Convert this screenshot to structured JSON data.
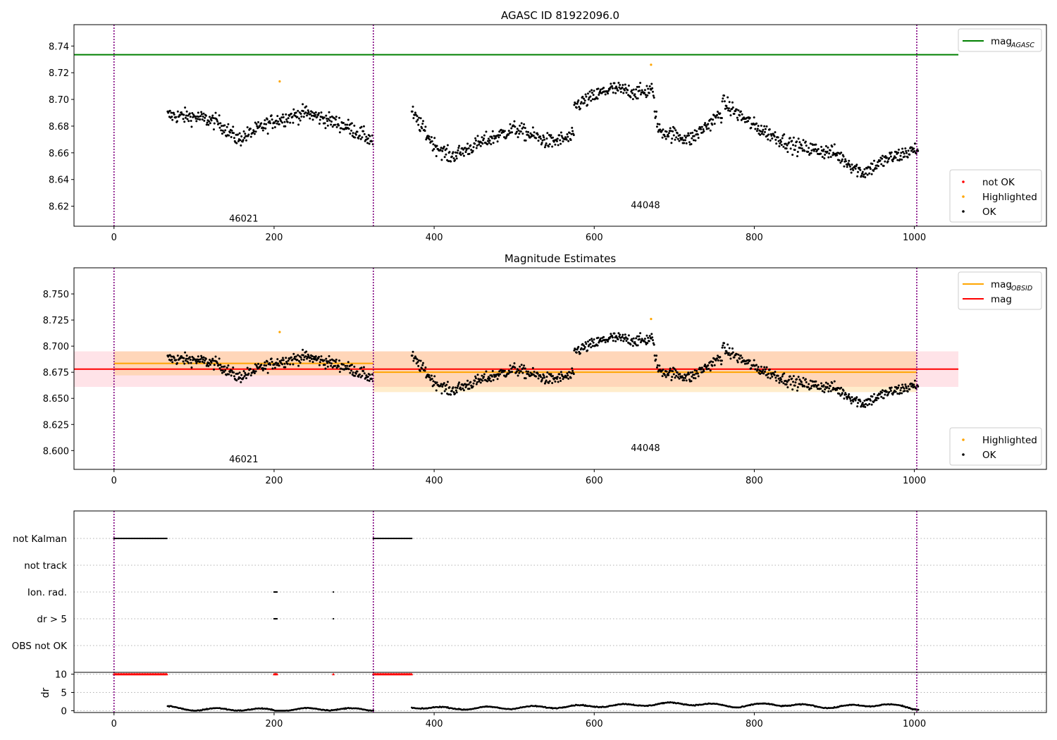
{
  "chart_data": [
    {
      "type": "scatter",
      "title": "AGASC ID 81922096.0",
      "xlabel": "",
      "ylabel": "",
      "xlim": [
        -50,
        1165
      ],
      "ylim": [
        8.605,
        8.756
      ],
      "xticks": [
        "0",
        "200",
        "400",
        "600",
        "800",
        "1000"
      ],
      "yticks": [
        "8.62",
        "8.64",
        "8.66",
        "8.68",
        "8.70",
        "8.72",
        "8.74"
      ],
      "grid": false,
      "obs_boundaries": [
        0,
        324,
        1003
      ],
      "obs_labels": [
        {
          "text": "46021",
          "x": 162,
          "y": 8.611
        },
        {
          "text": "44048",
          "x": 664,
          "y": 8.621
        }
      ],
      "lines": [
        {
          "name": "mag_AGASC",
          "x": [
            -50,
            1055
          ],
          "y": [
            8.7335,
            8.7335
          ],
          "color": "#008000"
        }
      ],
      "highlighted": [
        {
          "x": 207,
          "y": 8.7135
        },
        {
          "x": 671,
          "y": 8.726
        }
      ],
      "ok_series": {
        "name": "OK",
        "segments": [
          {
            "x_start": 67,
            "x_end": 324,
            "knots": [
              [
                67,
                8.688
              ],
              [
                100,
                8.687
              ],
              [
                130,
                8.683
              ],
              [
                155,
                8.67
              ],
              [
                200,
                8.684
              ],
              [
                240,
                8.69
              ],
              [
                290,
                8.68
              ],
              [
                324,
                8.669
              ]
            ]
          },
          {
            "x_start": 372,
            "x_end": 575,
            "knots": [
              [
                372,
                8.69
              ],
              [
                400,
                8.666
              ],
              [
                420,
                8.657
              ],
              [
                460,
                8.668
              ],
              [
                500,
                8.678
              ],
              [
                545,
                8.668
              ],
              [
                575,
                8.672
              ]
            ]
          },
          {
            "x_start": 575,
            "x_end": 760,
            "knots": [
              [
                575,
                8.695
              ],
              [
                620,
                8.708
              ],
              [
                660,
                8.705
              ],
              [
                672,
                8.708
              ],
              [
                680,
                8.677
              ],
              [
                720,
                8.67
              ],
              [
                760,
                8.69
              ]
            ]
          },
          {
            "x_start": 760,
            "x_end": 1005,
            "knots": [
              [
                760,
                8.698
              ],
              [
                800,
                8.68
              ],
              [
                850,
                8.665
              ],
              [
                900,
                8.66
              ],
              [
                935,
                8.645
              ],
              [
                965,
                8.655
              ],
              [
                1005,
                8.663
              ]
            ]
          }
        ]
      },
      "legends": [
        {
          "position": "top-right",
          "entries": [
            {
              "label": "mag",
              "sub": "AGASC",
              "kind": "line",
              "color": "#008000"
            }
          ]
        },
        {
          "position": "bottom-right",
          "entries": [
            {
              "label": "not OK",
              "kind": "dot",
              "color": "#ff0000"
            },
            {
              "label": "Highlighted",
              "kind": "dot",
              "color": "#ffa500"
            },
            {
              "label": "OK",
              "kind": "dot",
              "color": "#000000"
            }
          ]
        }
      ]
    },
    {
      "type": "scatter",
      "title": "Magnitude Estimates",
      "xlabel": "",
      "ylabel": "",
      "xlim": [
        -50,
        1165
      ],
      "ylim": [
        8.582,
        8.775
      ],
      "xticks": [
        "0",
        "200",
        "400",
        "600",
        "800",
        "1000"
      ],
      "yticks": [
        "8.600",
        "8.625",
        "8.650",
        "8.675",
        "8.700",
        "8.725",
        "8.750"
      ],
      "grid": false,
      "obs_boundaries": [
        0,
        324,
        1003
      ],
      "obs_labels": [
        {
          "text": "46021",
          "x": 162,
          "y": 8.592
        },
        {
          "text": "44048",
          "x": 664,
          "y": 8.603
        }
      ],
      "bands": [
        {
          "x": [
            -50,
            1055
          ],
          "y": [
            8.661,
            8.695
          ],
          "color": "#ffc0cb",
          "alpha": 0.45
        },
        {
          "x": [
            0,
            324
          ],
          "y": [
            8.672,
            8.695
          ],
          "color": "#ffa500",
          "alpha": 0.2
        },
        {
          "x": [
            324,
            1003
          ],
          "y": [
            8.656,
            8.695
          ],
          "color": "#ffa500",
          "alpha": 0.2
        }
      ],
      "lines": [
        {
          "name": "mag_OBSID",
          "x": [
            0,
            324
          ],
          "y": [
            8.6835,
            8.6835
          ],
          "color": "#ffa500"
        },
        {
          "name": "mag_OBSID",
          "x": [
            324,
            1003
          ],
          "y": [
            8.675,
            8.675
          ],
          "color": "#ffa500"
        },
        {
          "name": "mag",
          "x": [
            -50,
            1055
          ],
          "y": [
            8.678,
            8.678
          ],
          "color": "#ff0000"
        }
      ],
      "highlighted": [
        {
          "x": 207,
          "y": 8.7135
        },
        {
          "x": 671,
          "y": 8.726
        }
      ],
      "ok_series": {
        "name": "OK",
        "same_as_panel": 0
      },
      "legends": [
        {
          "position": "top-right",
          "entries": [
            {
              "label": "mag",
              "sub": "OBSID",
              "kind": "line",
              "color": "#ffa500"
            },
            {
              "label": "mag",
              "kind": "line",
              "color": "#ff0000"
            }
          ]
        },
        {
          "position": "bottom-right",
          "entries": [
            {
              "label": "Highlighted",
              "kind": "dot",
              "color": "#ffa500"
            },
            {
              "label": "OK",
              "kind": "dot",
              "color": "#000000"
            }
          ]
        }
      ]
    },
    {
      "type": "scatter",
      "title": "",
      "xlim": [
        -50,
        1165
      ],
      "xticks": [
        "0",
        "200",
        "400",
        "600",
        "800",
        "1000"
      ],
      "obs_boundaries": [
        0,
        324,
        1003
      ],
      "flag_rows": [
        "not Kalman",
        "not track",
        "Ion. rad.",
        "dr > 5",
        "OBS not OK"
      ],
      "flags": {
        "not Kalman": [
          [
            0,
            67
          ],
          [
            324,
            372
          ]
        ],
        "not track": [],
        "Ion. rad.": [
          [
            200,
            204
          ],
          [
            274,
            275
          ]
        ],
        "dr > 5": [
          [
            200,
            204
          ],
          [
            274,
            275
          ]
        ],
        "OBS not OK": []
      },
      "dr": {
        "ylabel": "dr",
        "yticks": [
          "0",
          "5",
          "10"
        ],
        "ylim": [
          -0.5,
          10.5
        ],
        "clipped_at_10": [
          [
            0,
            67
          ],
          [
            200,
            204
          ],
          [
            274,
            275
          ],
          [
            324,
            372
          ]
        ],
        "clip_color": "#ff0000",
        "trace_knots": [
          [
            67,
            0.9
          ],
          [
            100,
            0.3
          ],
          [
            150,
            0.4
          ],
          [
            200,
            0.2
          ],
          [
            260,
            0.5
          ],
          [
            320,
            0.3
          ],
          [
            372,
            1.0
          ],
          [
            420,
            0.6
          ],
          [
            520,
            0.9
          ],
          [
            640,
            1.5
          ],
          [
            710,
            2.0
          ],
          [
            780,
            1.2
          ],
          [
            820,
            1.8
          ],
          [
            900,
            1.0
          ],
          [
            960,
            1.7
          ],
          [
            1005,
            0.6
          ]
        ]
      }
    }
  ]
}
